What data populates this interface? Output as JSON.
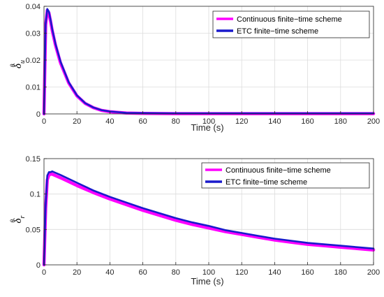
{
  "chart_data": [
    {
      "type": "line",
      "ylabel": "δ̃u θ",
      "ylabel_symbol": "δ",
      "ylabel_sub": "u",
      "ylabel_sup": "θ",
      "xlabel": "Time (s)",
      "xlim": [
        0,
        200
      ],
      "ylim": [
        0,
        0.04
      ],
      "xticks": [
        "0",
        "20",
        "40",
        "60",
        "80",
        "100",
        "120",
        "140",
        "160",
        "180",
        "200"
      ],
      "yticks": [
        "0",
        "0.01",
        "0.02",
        "0.03",
        "0.04"
      ],
      "grid": true,
      "legend_position": "top-right",
      "series": [
        {
          "name": "Continuous finite−time scheme",
          "color": "#ff00ff",
          "x": [
            0,
            1,
            2,
            3,
            4,
            5,
            7,
            10,
            15,
            20,
            25,
            30,
            35,
            40,
            50,
            60,
            80,
            100,
            120,
            140,
            160,
            180,
            200
          ],
          "y": [
            0,
            0.033,
            0.0385,
            0.0375,
            0.0345,
            0.031,
            0.0255,
            0.019,
            0.0115,
            0.0067,
            0.0039,
            0.0023,
            0.0013,
            0.0008,
            0.0003,
            0.0002,
            0.0001,
            0.0001,
            0.0001,
            0.0001,
            0.0001,
            0.0001,
            0.0001
          ]
        },
        {
          "name": "ETC finite−time scheme",
          "color": "#1a1acc",
          "x": [
            0,
            1,
            2,
            3,
            4,
            5,
            7,
            10,
            15,
            20,
            25,
            30,
            35,
            40,
            50,
            60,
            80,
            100,
            120,
            140,
            160,
            180,
            200
          ],
          "y": [
            0,
            0.0335,
            0.039,
            0.038,
            0.035,
            0.0315,
            0.026,
            0.0195,
            0.0118,
            0.0069,
            0.004,
            0.0024,
            0.0014,
            0.0009,
            0.0004,
            0.0003,
            0.0002,
            0.0002,
            0.0002,
            0.0002,
            0.0002,
            0.0002,
            0.0002
          ]
        }
      ]
    },
    {
      "type": "line",
      "ylabel": "δ̃r θ",
      "ylabel_symbol": "δ",
      "ylabel_sub": "r",
      "ylabel_sup": "θ",
      "xlabel": "Time (s)",
      "xlim": [
        0,
        200
      ],
      "ylim": [
        0,
        0.15
      ],
      "xticks": [
        "0",
        "20",
        "40",
        "60",
        "80",
        "100",
        "120",
        "140",
        "160",
        "180",
        "200"
      ],
      "yticks": [
        "0",
        "0.05",
        "0.1",
        "0.15"
      ],
      "grid": true,
      "legend_position": "top-right",
      "series": [
        {
          "name": "Continuous finite−time scheme",
          "color": "#ff00ff",
          "x": [
            0,
            1,
            2,
            3,
            4,
            5,
            6,
            10,
            20,
            30,
            40,
            50,
            60,
            70,
            80,
            90,
            100,
            110,
            120,
            130,
            140,
            150,
            160,
            170,
            180,
            190,
            200
          ],
          "y": [
            0,
            0.08,
            0.12,
            0.127,
            0.128,
            0.128,
            0.127,
            0.123,
            0.112,
            0.102,
            0.093,
            0.085,
            0.077,
            0.07,
            0.063,
            0.057,
            0.052,
            0.047,
            0.043,
            0.039,
            0.035,
            0.032,
            0.029,
            0.027,
            0.025,
            0.023,
            0.021
          ]
        },
        {
          "name": "ETC finite−time scheme",
          "color": "#1a1acc",
          "x": [
            0,
            1,
            2,
            3,
            4,
            5,
            6,
            10,
            20,
            30,
            40,
            50,
            60,
            70,
            80,
            90,
            100,
            110,
            120,
            130,
            140,
            150,
            160,
            170,
            180,
            190,
            200
          ],
          "y": [
            0,
            0.085,
            0.126,
            0.131,
            0.131,
            0.132,
            0.131,
            0.127,
            0.116,
            0.105,
            0.096,
            0.088,
            0.08,
            0.073,
            0.066,
            0.06,
            0.055,
            0.049,
            0.045,
            0.041,
            0.037,
            0.034,
            0.031,
            0.029,
            0.027,
            0.025,
            0.023
          ]
        }
      ]
    }
  ]
}
